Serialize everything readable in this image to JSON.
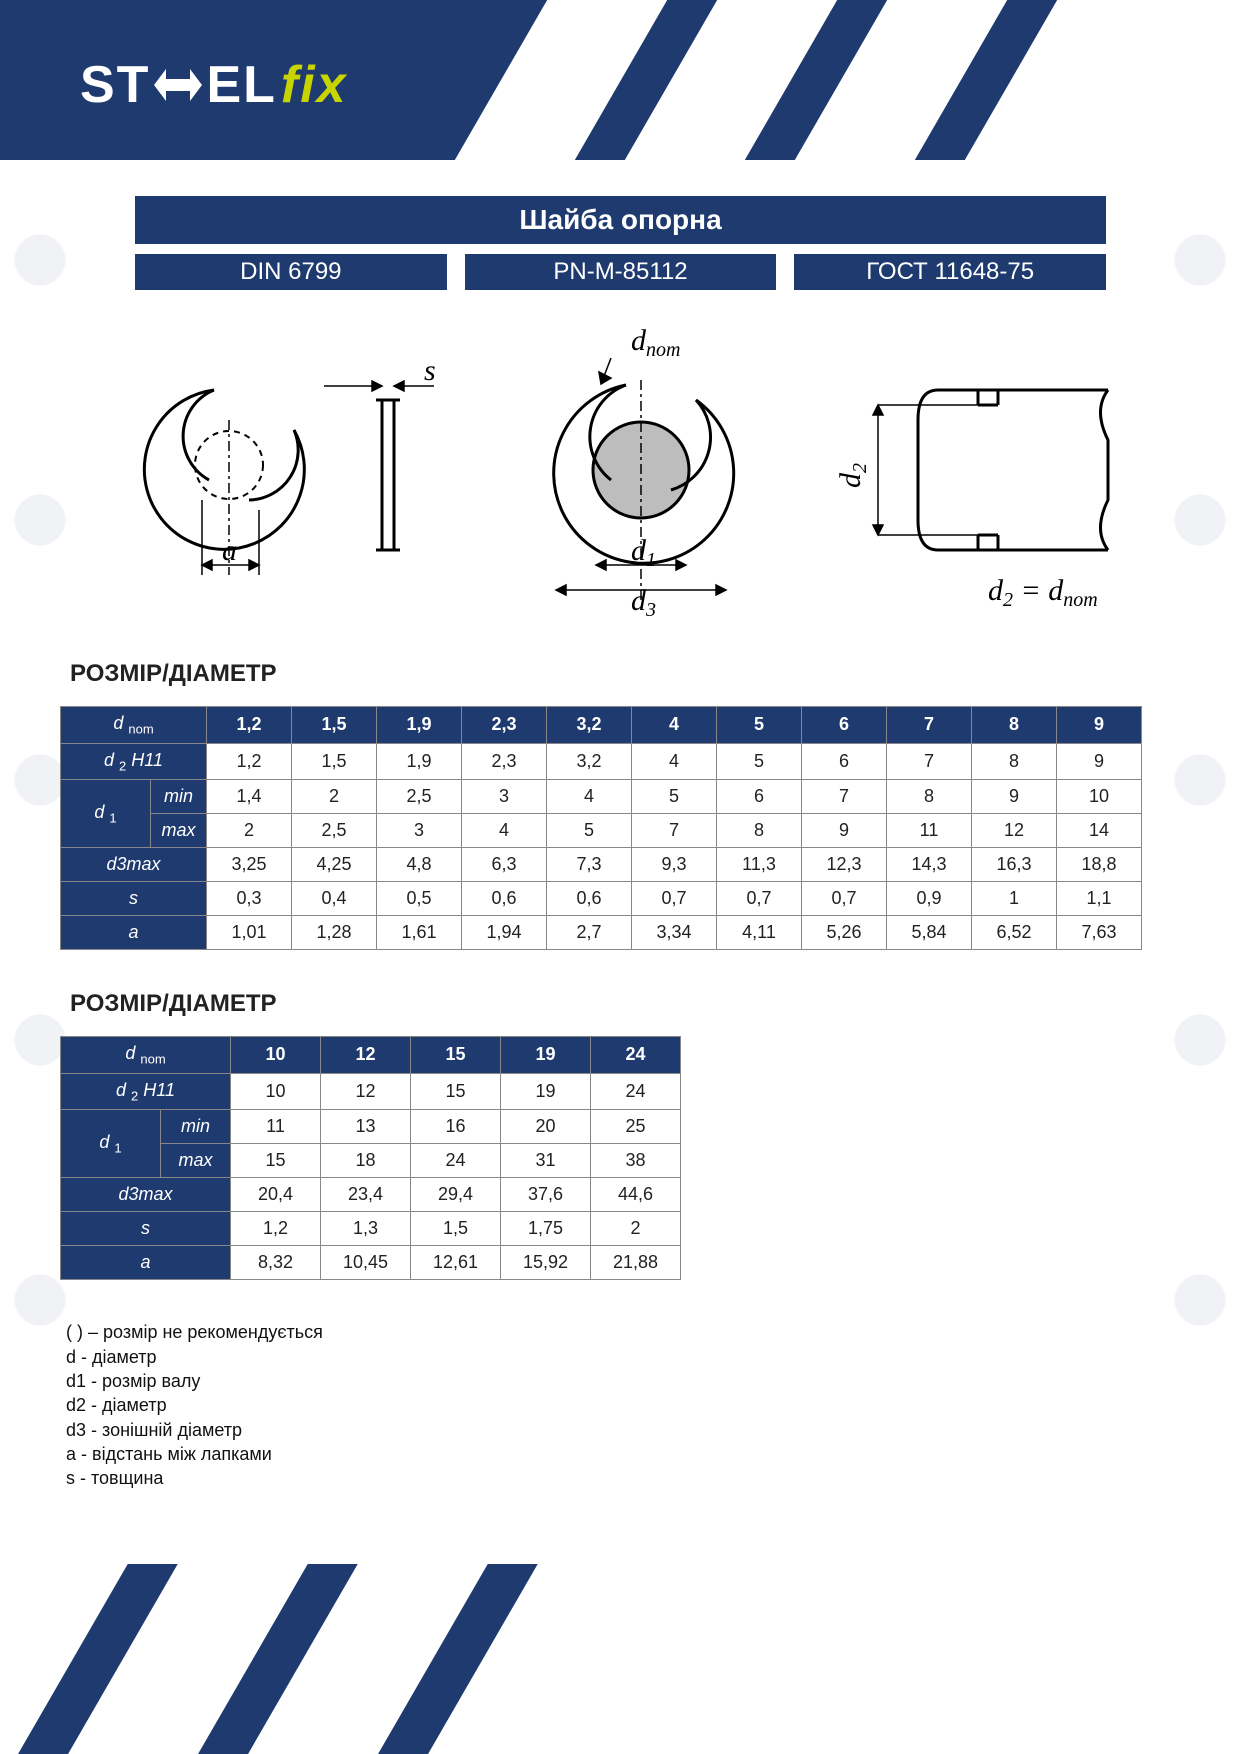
{
  "brand": {
    "name_part1": "ST",
    "name_part2": "EL",
    "name_part3": "fix"
  },
  "colors": {
    "primary": "#1e3a6e",
    "accent": "#c8d400",
    "white": "#ffffff",
    "text": "#222222",
    "grid": "#888888"
  },
  "title": "Шайба опорна",
  "standards": [
    "DIN 6799",
    "PN-M-85112",
    "ГОСТ 11648-75"
  ],
  "diagram_labels": {
    "s": "s",
    "a": "a",
    "dnom": "d",
    "dnom_sub": "nom",
    "d1": "d",
    "d1_sub": "1",
    "d2": "d",
    "d2_sub": "2",
    "d3": "d",
    "d3_sub": "3",
    "equation_lhs": "d",
    "equation_lhs_sub": "2",
    "equation_rhs": "d",
    "equation_rhs_sub": "nom"
  },
  "section_title": "РОЗМІР/ДІАМЕТР",
  "table_row_headers": {
    "dnom_html": "d <span class='sub'>nom</span>",
    "d2h11_html": "d <span class='sub'>2</span> H11",
    "d1_html": "d <span class='sub'>1</span>",
    "min": "min",
    "max": "max",
    "d3max_html": "d3max",
    "s": "s",
    "a": "a"
  },
  "table1": {
    "columns": [
      "1,2",
      "1,5",
      "1,9",
      "2,3",
      "3,2",
      "4",
      "5",
      "6",
      "7",
      "8",
      "9"
    ],
    "rows": {
      "d2H11": [
        "1,2",
        "1,5",
        "1,9",
        "2,3",
        "3,2",
        "4",
        "5",
        "6",
        "7",
        "8",
        "9"
      ],
      "d1min": [
        "1,4",
        "2",
        "2,5",
        "3",
        "4",
        "5",
        "6",
        "7",
        "8",
        "9",
        "10"
      ],
      "d1max": [
        "2",
        "2,5",
        "3",
        "4",
        "5",
        "7",
        "8",
        "9",
        "11",
        "12",
        "14"
      ],
      "d3max": [
        "3,25",
        "4,25",
        "4,8",
        "6,3",
        "7,3",
        "9,3",
        "11,3",
        "12,3",
        "14,3",
        "16,3",
        "18,8"
      ],
      "s": [
        "0,3",
        "0,4",
        "0,5",
        "0,6",
        "0,6",
        "0,7",
        "0,7",
        "0,7",
        "0,9",
        "1",
        "1,1"
      ],
      "a": [
        "1,01",
        "1,28",
        "1,61",
        "1,94",
        "2,7",
        "3,34",
        "4,11",
        "5,26",
        "5,84",
        "6,52",
        "7,63"
      ]
    }
  },
  "table2": {
    "columns": [
      "10",
      "12",
      "15",
      "19",
      "24"
    ],
    "rows": {
      "d2H11": [
        "10",
        "12",
        "15",
        "19",
        "24"
      ],
      "d1min": [
        "11",
        "13",
        "16",
        "20",
        "25"
      ],
      "d1max": [
        "15",
        "18",
        "24",
        "31",
        "38"
      ],
      "d3max": [
        "20,4",
        "23,4",
        "29,4",
        "37,6",
        "44,6"
      ],
      "s": [
        "1,2",
        "1,3",
        "1,5",
        "1,75",
        "2"
      ],
      "a": [
        "8,32",
        "10,45",
        "12,61",
        "15,92",
        "21,88"
      ]
    }
  },
  "legend": [
    "( ) – розмір не рекомендується",
    "d - діаметр",
    "d1 - розмір валу",
    "d2 - діаметр",
    "d3 - зонішній діаметр",
    "a - відстань між лапками",
    "s - товщина"
  ]
}
